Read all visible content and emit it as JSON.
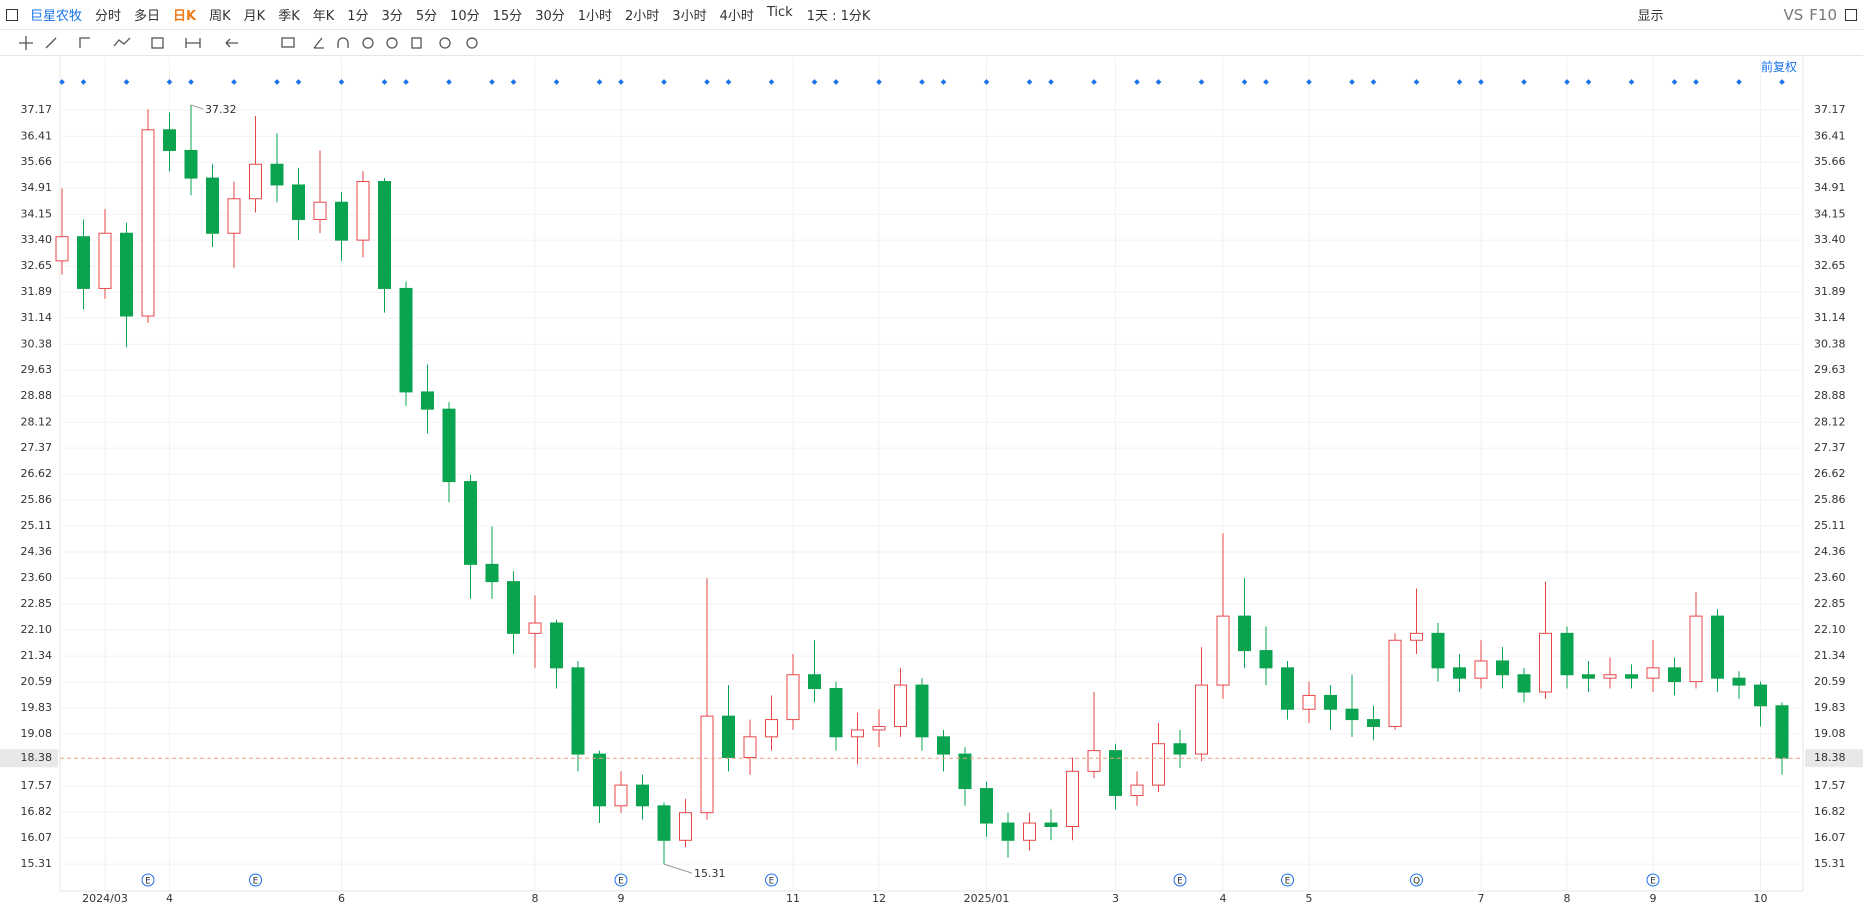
{
  "toolbar": {
    "stock": "巨星农牧",
    "periods": [
      "分时",
      "多日",
      "日K",
      "周K",
      "月K",
      "季K",
      "年K",
      "1分",
      "3分",
      "5分",
      "10分",
      "15分",
      "30分",
      "1小时",
      "2小时",
      "3小时",
      "4小时",
      "Tick"
    ],
    "active_period": "日K",
    "interval": "1天 : 1分K",
    "display": "显示",
    "vs": "VS",
    "f10": "F10",
    "adjust": "前复权"
  },
  "chart_data": {
    "type": "candlestick",
    "categories": [
      null,
      null,
      "2024/03",
      null,
      null,
      "4",
      null,
      null,
      null,
      null,
      null,
      null,
      null,
      "6",
      null,
      null,
      null,
      null,
      null,
      null,
      null,
      null,
      "8",
      null,
      null,
      null,
      "9",
      null,
      null,
      null,
      null,
      null,
      null,
      null,
      "11",
      null,
      null,
      null,
      "12",
      null,
      null,
      null,
      null,
      "2025/01",
      null,
      null,
      null,
      null,
      null,
      "3",
      null,
      null,
      null,
      null,
      "4",
      null,
      null,
      null,
      "5",
      null,
      null,
      null,
      null,
      null,
      null,
      null,
      "7",
      null,
      null,
      null,
      "8",
      null,
      null,
      null,
      "9",
      null,
      null,
      null,
      null,
      "10",
      null
    ],
    "series": {
      "open": [
        32.8,
        33.5,
        32.0,
        33.6,
        31.2,
        36.6,
        36.0,
        35.2,
        33.6,
        34.6,
        35.6,
        35.0,
        34.0,
        34.5,
        33.4,
        35.1,
        32.0,
        29.0,
        28.5,
        26.4,
        24.0,
        23.5,
        22.0,
        22.3,
        21.0,
        18.5,
        17.0,
        17.6,
        17.0,
        16.0,
        16.8,
        19.6,
        18.4,
        19.0,
        19.5,
        20.8,
        20.4,
        19.0,
        19.2,
        19.3,
        20.5,
        19.0,
        18.5,
        17.5,
        16.5,
        16.0,
        16.5,
        16.4,
        18.0,
        18.6,
        17.3,
        17.6,
        18.8,
        18.5,
        20.5,
        22.5,
        21.5,
        21.0,
        19.8,
        20.2,
        19.8,
        19.5,
        19.3,
        21.8,
        22.0,
        21.0,
        20.7,
        21.2,
        20.8,
        20.3,
        22.0,
        20.8,
        20.7,
        20.8,
        20.7,
        21.0,
        20.6,
        22.5,
        20.7,
        20.5,
        19.9
      ],
      "high": [
        34.9,
        34.0,
        34.3,
        33.9,
        37.2,
        37.1,
        37.32,
        35.6,
        35.1,
        37.0,
        36.5,
        35.5,
        36.0,
        34.8,
        35.4,
        35.2,
        32.2,
        29.8,
        28.7,
        26.6,
        25.1,
        23.8,
        23.1,
        22.4,
        21.2,
        18.6,
        18.0,
        17.9,
        17.1,
        17.2,
        23.6,
        20.5,
        19.5,
        20.2,
        21.4,
        21.8,
        20.6,
        19.7,
        19.8,
        21.0,
        20.7,
        19.2,
        18.7,
        17.7,
        16.8,
        16.8,
        16.9,
        18.4,
        20.3,
        18.8,
        18.0,
        19.4,
        19.2,
        21.6,
        24.9,
        23.6,
        22.2,
        21.2,
        20.6,
        20.5,
        20.8,
        19.9,
        22.0,
        23.3,
        22.3,
        21.4,
        21.8,
        21.6,
        21.0,
        23.5,
        22.2,
        21.2,
        21.3,
        21.1,
        21.8,
        21.3,
        23.2,
        22.7,
        20.9,
        20.6,
        20.0
      ],
      "low": [
        32.4,
        31.4,
        31.7,
        30.3,
        31.0,
        35.4,
        34.7,
        33.2,
        32.6,
        34.2,
        34.5,
        33.4,
        33.6,
        32.8,
        32.9,
        31.3,
        28.6,
        27.8,
        25.8,
        23.0,
        23.0,
        21.4,
        21.0,
        20.4,
        18.0,
        16.5,
        16.8,
        16.6,
        15.31,
        15.8,
        16.6,
        18.0,
        17.9,
        18.6,
        19.2,
        20.0,
        18.6,
        18.2,
        18.7,
        19.0,
        18.6,
        18.0,
        17.0,
        16.1,
        15.5,
        15.7,
        16.0,
        16.0,
        17.8,
        16.9,
        17.0,
        17.4,
        18.1,
        18.3,
        20.1,
        21.0,
        20.5,
        19.5,
        19.4,
        19.2,
        19.0,
        18.9,
        19.2,
        21.4,
        20.6,
        20.3,
        20.4,
        20.4,
        20.0,
        20.1,
        20.4,
        20.3,
        20.4,
        20.4,
        20.3,
        20.2,
        20.4,
        20.3,
        20.1,
        19.3,
        17.9
      ],
      "close": [
        33.5,
        32.0,
        33.6,
        31.2,
        36.6,
        36.0,
        35.2,
        33.6,
        34.6,
        35.6,
        35.0,
        34.0,
        34.5,
        33.4,
        35.1,
        32.0,
        29.0,
        28.5,
        26.4,
        24.0,
        23.5,
        22.0,
        22.3,
        21.0,
        18.5,
        17.0,
        17.6,
        17.0,
        16.0,
        16.8,
        19.6,
        18.4,
        19.0,
        19.5,
        20.8,
        20.4,
        19.0,
        19.2,
        19.3,
        20.5,
        19.0,
        18.5,
        17.5,
        16.5,
        16.0,
        16.5,
        16.4,
        18.0,
        18.6,
        17.3,
        17.6,
        18.8,
        18.5,
        20.5,
        22.5,
        21.5,
        21.0,
        19.8,
        20.2,
        19.8,
        19.5,
        19.3,
        21.8,
        22.0,
        21.0,
        20.7,
        21.2,
        20.8,
        20.3,
        22.0,
        20.8,
        20.7,
        20.8,
        20.7,
        21.0,
        20.6,
        22.5,
        20.7,
        20.5,
        19.9,
        18.38
      ]
    },
    "up_color": "#e8474a",
    "down_color": "#0aa34f",
    "events": [
      null,
      null,
      null,
      null,
      "E",
      null,
      null,
      null,
      null,
      "E",
      null,
      null,
      null,
      null,
      null,
      null,
      null,
      null,
      null,
      null,
      null,
      null,
      null,
      null,
      null,
      null,
      "E",
      null,
      null,
      null,
      null,
      null,
      null,
      "E",
      null,
      null,
      null,
      null,
      null,
      null,
      null,
      null,
      null,
      null,
      null,
      null,
      null,
      null,
      null,
      null,
      null,
      null,
      "E",
      null,
      null,
      null,
      null,
      "E",
      null,
      null,
      null,
      null,
      null,
      "Q",
      null,
      null,
      null,
      null,
      null,
      null,
      null,
      null,
      null,
      null,
      "E",
      null,
      null,
      null,
      null,
      null,
      null
    ],
    "max_index": 6,
    "min_index": 28,
    "last_price": 18.38,
    "ylim": [
      14.53,
      38.71
    ],
    "yticks": [
      37.17,
      36.41,
      35.66,
      34.91,
      34.15,
      {
        "value": 33.4,
        "label": "33.40"
      },
      32.65,
      31.89,
      31.14,
      30.38,
      29.63,
      28.88,
      28.12,
      27.37,
      26.62,
      25.86,
      25.11,
      24.36,
      {
        "value": 23.6,
        "label": "23.60"
      },
      22.85,
      {
        "value": 22.1,
        "label": "22.10"
      },
      21.34,
      20.59,
      19.83,
      19.08,
      17.57,
      16.82,
      16.07,
      15.31
    ],
    "grid": true
  }
}
